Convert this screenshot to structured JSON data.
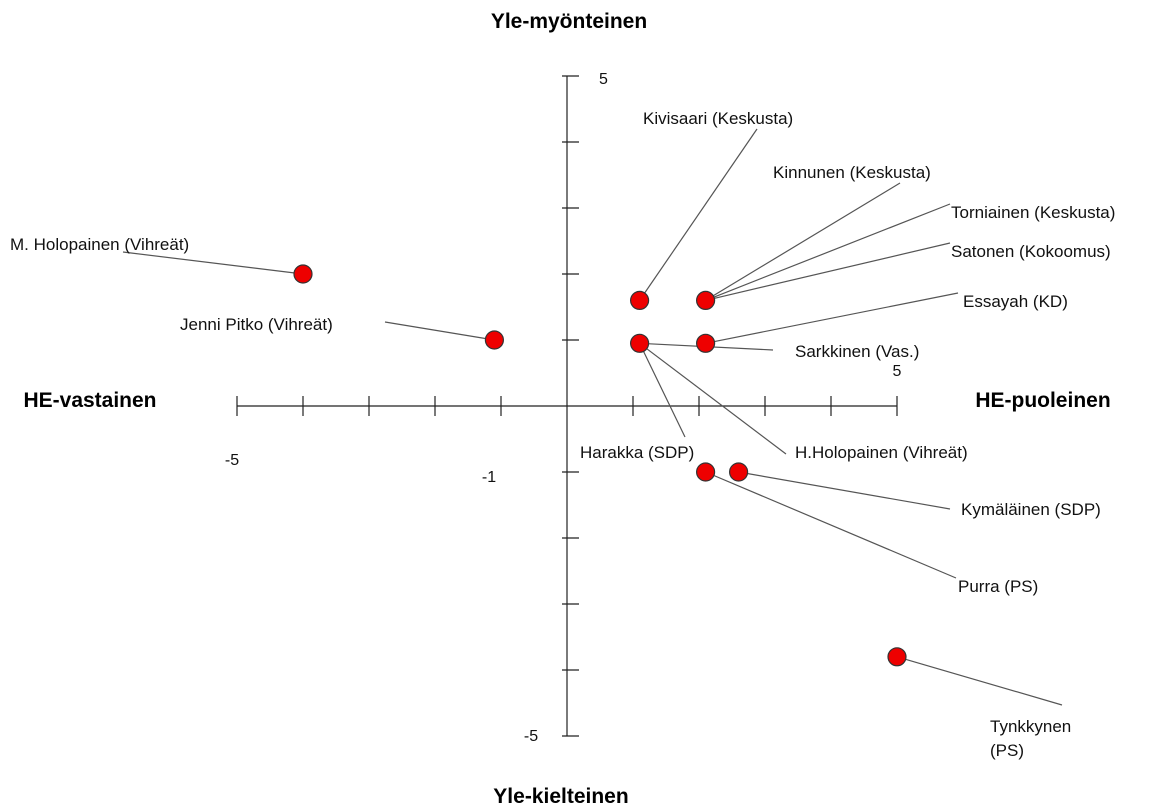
{
  "chart_data": {
    "type": "scatter",
    "poles": {
      "top": "Yle-myönteinen",
      "bottom": "Yle-kielteinen",
      "left": "HE-vastainen",
      "right": "HE-puoleinen"
    },
    "tick_labels": {
      "x_neg": "-5",
      "x_pos": "5",
      "y_pos": "5",
      "y_neg": "-5",
      "y_neg1": "-1"
    },
    "xlim": [
      -5,
      5
    ],
    "ylim": [
      -5,
      5
    ],
    "grid": false,
    "point_color": "#ee0000",
    "points": [
      {
        "label": "Kivisaari (Keskusta)",
        "x": 1.1,
        "y": 1.6
      },
      {
        "label": "Kinnunen (Keskusta)",
        "x": 2.1,
        "y": 1.6
      },
      {
        "label": "Torniainen (Keskusta)",
        "x": 2.1,
        "y": 1.6
      },
      {
        "label": "Satonen (Kokoomus)",
        "x": 2.1,
        "y": 1.6
      },
      {
        "label": "M. Holopainen (Vihreät)",
        "x": -4,
        "y": 2
      },
      {
        "label": "Jenni Pitko (Vihreät)",
        "x": -1.1,
        "y": 1
      },
      {
        "label": "Essayah (KD)",
        "x": 2.1,
        "y": 0.95
      },
      {
        "label": "Sarkkinen (Vas.)",
        "x": 1.1,
        "y": 0.95
      },
      {
        "label": "Harakka (SDP)",
        "x": 1.1,
        "y": 0.95
      },
      {
        "label": "H.Holopainen (Vihreät)",
        "x": 1.1,
        "y": 0.95
      },
      {
        "label": "Kymäläinen (SDP)",
        "x": 2.6,
        "y": -1
      },
      {
        "label": "Purra (PS)",
        "x": 2.1,
        "y": -1
      },
      {
        "label": "Tynkkynen",
        "label2": "(PS)",
        "x": 5,
        "y": -3.8
      }
    ]
  }
}
